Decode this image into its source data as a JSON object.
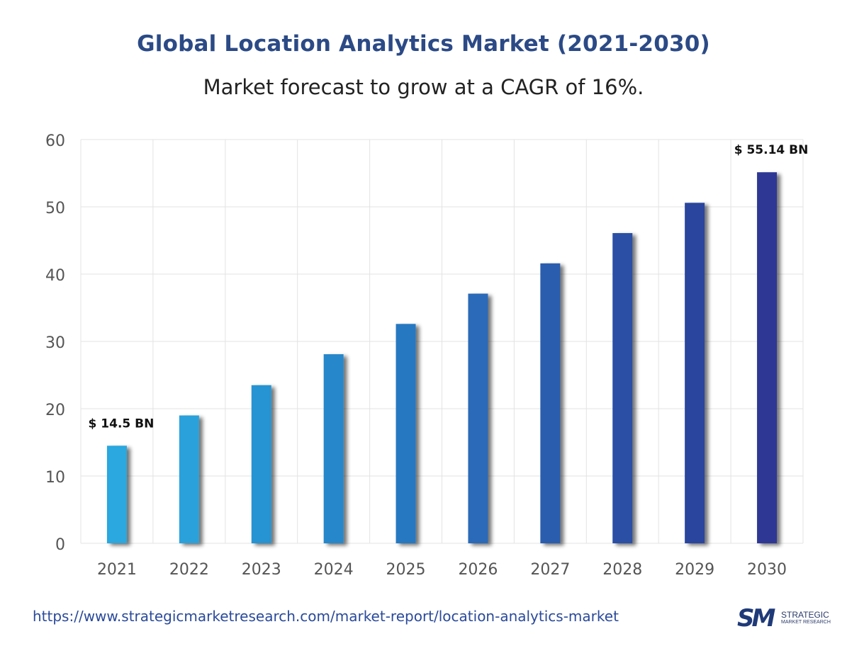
{
  "chart_data": {
    "type": "bar",
    "title": "Global Location Analytics Market (2021-2030)",
    "subtitle": "Market forecast to grow at a CAGR of 16%.",
    "categories": [
      "2021",
      "2022",
      "2023",
      "2024",
      "2025",
      "2026",
      "2027",
      "2028",
      "2029",
      "2030"
    ],
    "values": [
      14.5,
      19.0,
      23.5,
      28.1,
      32.6,
      37.1,
      41.6,
      46.1,
      50.6,
      55.14
    ],
    "annotations": [
      {
        "category": "2021",
        "text": "$ 14.5 BN"
      },
      {
        "category": "2030",
        "text": "$ 55.14 BN"
      }
    ],
    "y_ticks": [
      "0",
      "10",
      "20",
      "30",
      "40",
      "50",
      "60"
    ],
    "ylim": [
      0,
      60
    ],
    "grid": true,
    "bar_colors": [
      "#29a8df",
      "#29a1db",
      "#2893d2",
      "#2887cb",
      "#2878c1",
      "#2a6bb8",
      "#2a5dae",
      "#2b50a5",
      "#2c449d",
      "#2d3894"
    ]
  },
  "footer": {
    "url": "https://www.strategicmarketresearch.com/market-report/location-analytics-market"
  },
  "logo": {
    "mark": "SM",
    "line1": "STRATEGIC",
    "line2": "MARKET RESEARCH"
  }
}
